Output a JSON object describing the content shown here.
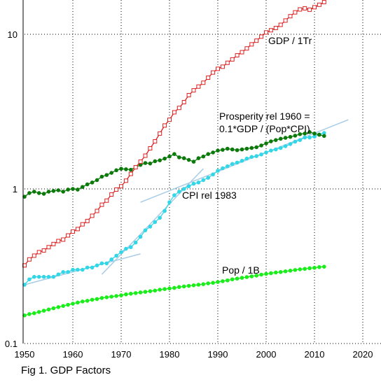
{
  "caption": "Fig 1.  GDP Factors",
  "chart_data": {
    "type": "line",
    "yscale": "log",
    "xlim": [
      1950,
      2020
    ],
    "ylim": [
      0.1,
      30
    ],
    "grid": true,
    "x_ticks": [
      "1950",
      "1960",
      "1970",
      "1980",
      "1990",
      "2000",
      "2010",
      "2020"
    ],
    "y_ticks": [
      "0.1",
      "1",
      "10"
    ],
    "colors": {
      "gdp": "#dd2020",
      "prosperity": "#0b7a0b",
      "cpi": "#33d6e6",
      "pop": "#1aee1a",
      "trend": "#a8cce6"
    },
    "series": [
      {
        "id": "gdp",
        "name": "GDP / 1Tr",
        "marker": "square",
        "x": [
          1950,
          1951,
          1952,
          1953,
          1954,
          1955,
          1956,
          1957,
          1958,
          1959,
          1960,
          1961,
          1962,
          1963,
          1964,
          1965,
          1966,
          1967,
          1968,
          1969,
          1970,
          1971,
          1972,
          1973,
          1974,
          1975,
          1976,
          1977,
          1978,
          1979,
          1980,
          1981,
          1982,
          1983,
          1984,
          1985,
          1986,
          1987,
          1988,
          1989,
          1990,
          1991,
          1992,
          1993,
          1994,
          1995,
          1996,
          1997,
          1998,
          1999,
          2000,
          2001,
          2002,
          2003,
          2004,
          2005,
          2006,
          2007,
          2008,
          2009,
          2010,
          2011,
          2012
        ],
        "values": [
          0.32,
          0.35,
          0.37,
          0.39,
          0.4,
          0.42,
          0.44,
          0.46,
          0.47,
          0.5,
          0.53,
          0.55,
          0.59,
          0.62,
          0.67,
          0.72,
          0.79,
          0.84,
          0.92,
          0.99,
          1.04,
          1.13,
          1.25,
          1.38,
          1.5,
          1.64,
          1.83,
          2.03,
          2.28,
          2.57,
          2.8,
          3.13,
          3.34,
          3.64,
          4.04,
          4.34,
          4.59,
          4.86,
          5.24,
          5.66,
          5.98,
          6.17,
          6.54,
          6.88,
          7.31,
          7.66,
          8.1,
          8.61,
          9.09,
          9.66,
          10.28,
          10.62,
          10.98,
          11.51,
          12.27,
          13.09,
          13.86,
          14.48,
          14.72,
          14.42,
          14.96,
          15.52,
          16.16
        ]
      },
      {
        "id": "prosperity",
        "name": "Prosperity rel 1960 = 0.1*GDP / (Pop*CPI)",
        "marker": "circle",
        "x": [
          1950,
          1951,
          1952,
          1953,
          1954,
          1955,
          1956,
          1957,
          1958,
          1959,
          1960,
          1961,
          1962,
          1963,
          1964,
          1965,
          1966,
          1967,
          1968,
          1969,
          1970,
          1971,
          1972,
          1973,
          1974,
          1975,
          1976,
          1977,
          1978,
          1979,
          1980,
          1981,
          1982,
          1983,
          1984,
          1985,
          1986,
          1987,
          1988,
          1989,
          1990,
          1991,
          1992,
          1993,
          1994,
          1995,
          1996,
          1997,
          1998,
          1999,
          2000,
          2001,
          2002,
          2003,
          2004,
          2005,
          2006,
          2007,
          2008,
          2009,
          2010,
          2011,
          2012
        ],
        "values": [
          0.89,
          0.94,
          0.96,
          0.94,
          0.93,
          0.96,
          0.97,
          0.98,
          0.96,
          0.99,
          1.0,
          0.99,
          1.03,
          1.07,
          1.1,
          1.14,
          1.2,
          1.23,
          1.27,
          1.32,
          1.35,
          1.34,
          1.33,
          1.38,
          1.43,
          1.47,
          1.46,
          1.51,
          1.53,
          1.57,
          1.62,
          1.68,
          1.6,
          1.58,
          1.54,
          1.5,
          1.58,
          1.62,
          1.68,
          1.72,
          1.77,
          1.79,
          1.82,
          1.8,
          1.78,
          1.8,
          1.82,
          1.84,
          1.86,
          1.91,
          1.97,
          2.03,
          2.07,
          2.11,
          2.14,
          2.17,
          2.21,
          2.26,
          2.28,
          2.33,
          2.28,
          2.24,
          2.2
        ]
      },
      {
        "id": "cpi",
        "name": "CPI rel 1983",
        "marker": "circle",
        "x": [
          1950,
          1951,
          1952,
          1953,
          1954,
          1955,
          1956,
          1957,
          1958,
          1959,
          1960,
          1961,
          1962,
          1963,
          1964,
          1965,
          1966,
          1967,
          1968,
          1969,
          1970,
          1971,
          1972,
          1973,
          1974,
          1975,
          1976,
          1977,
          1978,
          1979,
          1980,
          1981,
          1982,
          1983,
          1984,
          1985,
          1986,
          1987,
          1988,
          1989,
          1990,
          1991,
          1992,
          1993,
          1994,
          1995,
          1996,
          1997,
          1998,
          1999,
          2000,
          2001,
          2002,
          2003,
          2004,
          2005,
          2006,
          2007,
          2008,
          2009,
          2010,
          2011,
          2012
        ],
        "values": [
          0.24,
          0.26,
          0.27,
          0.27,
          0.27,
          0.27,
          0.27,
          0.28,
          0.29,
          0.29,
          0.3,
          0.3,
          0.3,
          0.31,
          0.31,
          0.32,
          0.33,
          0.33,
          0.35,
          0.37,
          0.39,
          0.41,
          0.42,
          0.45,
          0.49,
          0.54,
          0.57,
          0.61,
          0.65,
          0.72,
          0.82,
          0.91,
          0.96,
          1.0,
          1.04,
          1.08,
          1.1,
          1.14,
          1.18,
          1.24,
          1.31,
          1.36,
          1.4,
          1.45,
          1.48,
          1.52,
          1.57,
          1.61,
          1.63,
          1.67,
          1.72,
          1.77,
          1.8,
          1.84,
          1.89,
          1.95,
          2.02,
          2.07,
          2.15,
          2.15,
          2.18,
          2.25,
          2.3
        ]
      },
      {
        "id": "pop",
        "name": "Pop / 1B",
        "marker": "circle",
        "x": [
          1950,
          1951,
          1952,
          1953,
          1954,
          1955,
          1956,
          1957,
          1958,
          1959,
          1960,
          1961,
          1962,
          1963,
          1964,
          1965,
          1966,
          1967,
          1968,
          1969,
          1970,
          1971,
          1972,
          1973,
          1974,
          1975,
          1976,
          1977,
          1978,
          1979,
          1980,
          1981,
          1982,
          1983,
          1984,
          1985,
          1986,
          1987,
          1988,
          1989,
          1990,
          1991,
          1992,
          1993,
          1994,
          1995,
          1996,
          1997,
          1998,
          1999,
          2000,
          2001,
          2002,
          2003,
          2004,
          2005,
          2006,
          2007,
          2008,
          2009,
          2010,
          2011,
          2012
        ],
        "values": [
          0.152,
          0.155,
          0.157,
          0.16,
          0.163,
          0.166,
          0.169,
          0.172,
          0.175,
          0.178,
          0.181,
          0.184,
          0.187,
          0.189,
          0.192,
          0.194,
          0.197,
          0.199,
          0.201,
          0.203,
          0.205,
          0.208,
          0.21,
          0.212,
          0.214,
          0.216,
          0.218,
          0.22,
          0.223,
          0.225,
          0.227,
          0.229,
          0.232,
          0.234,
          0.236,
          0.238,
          0.24,
          0.242,
          0.245,
          0.247,
          0.25,
          0.253,
          0.256,
          0.26,
          0.263,
          0.266,
          0.269,
          0.272,
          0.275,
          0.279,
          0.282,
          0.285,
          0.288,
          0.29,
          0.293,
          0.296,
          0.299,
          0.302,
          0.304,
          0.307,
          0.309,
          0.312,
          0.314
        ]
      }
    ],
    "trend_lines": [
      {
        "x": [
          1950,
          1974
        ],
        "values": [
          0.24,
          0.38
        ]
      },
      {
        "x": [
          1966,
          1987
        ],
        "values": [
          0.28,
          1.35
        ]
      },
      {
        "x": [
          1974,
          2017
        ],
        "values": [
          0.82,
          2.8
        ]
      }
    ],
    "annotations": [
      {
        "series": "gdp",
        "lines": [
          "GDP / 1Tr"
        ]
      },
      {
        "series": "prosperity",
        "lines": [
          "Prosperity rel 1960 =",
          "0.1*GDP / (Pop*CPI)"
        ]
      },
      {
        "series": "cpi",
        "lines": [
          "CPI rel 1983"
        ]
      },
      {
        "series": "pop",
        "lines": [
          "Pop / 1B"
        ]
      }
    ]
  }
}
